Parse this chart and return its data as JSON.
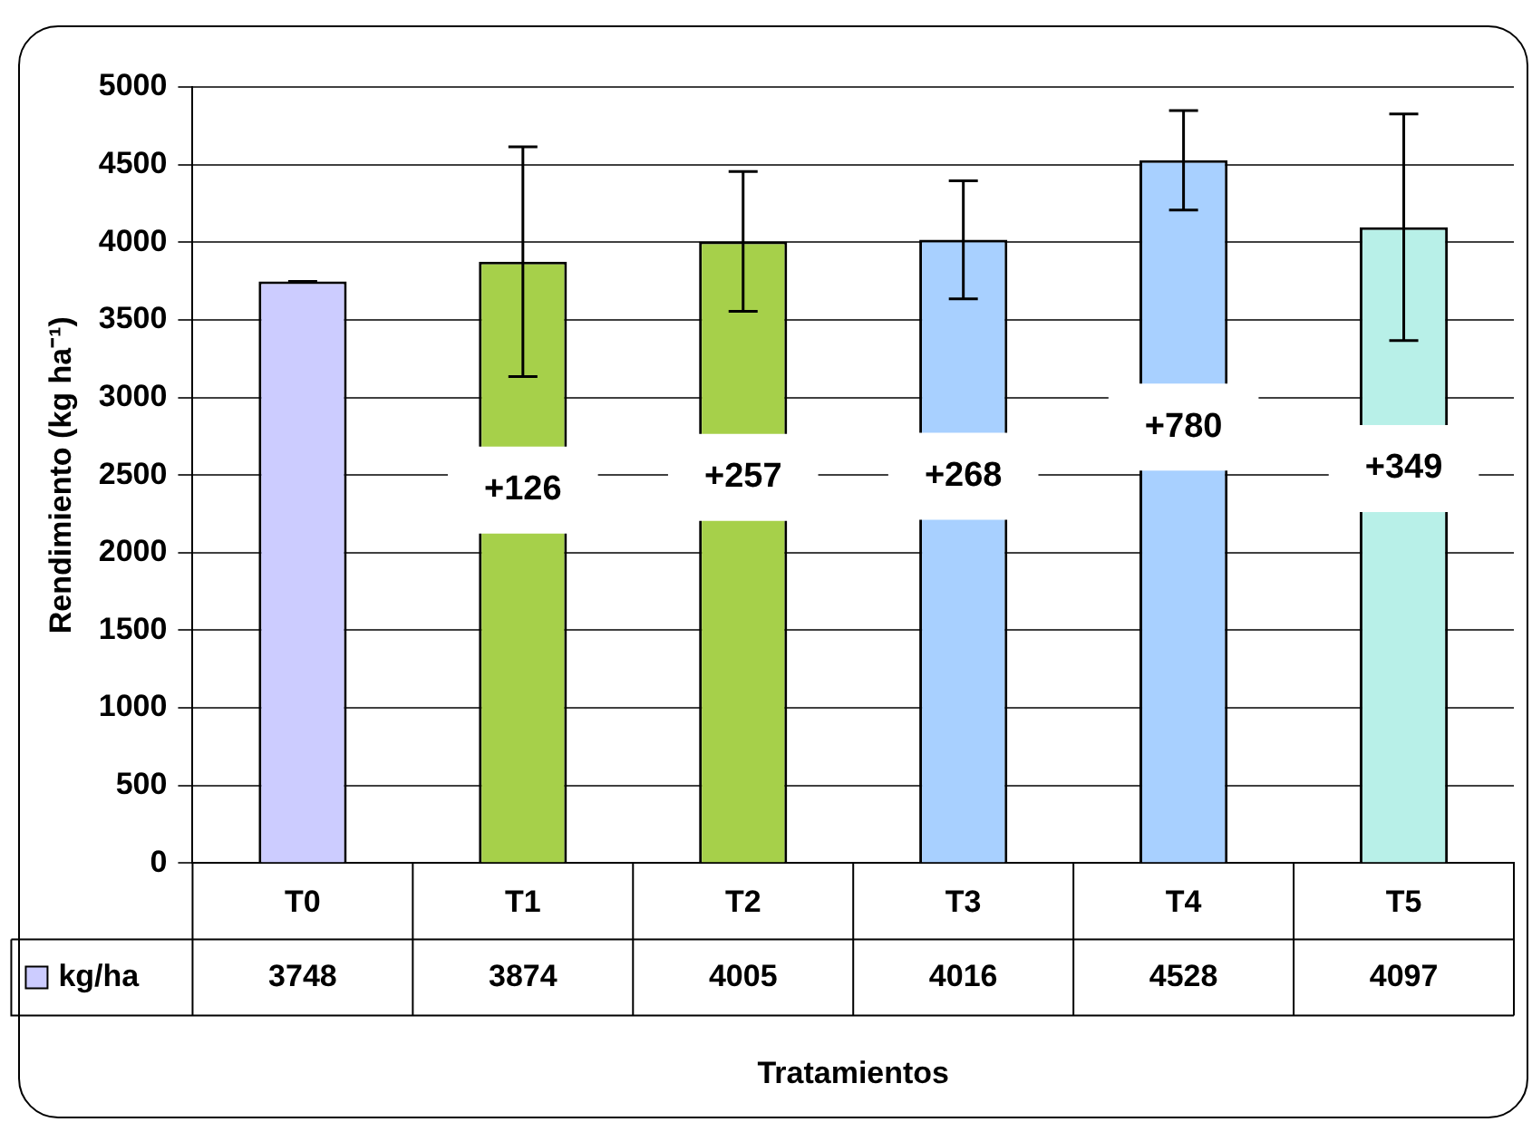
{
  "chart_data": {
    "type": "bar",
    "xlabel": "Tratamientos",
    "ylabel": "Rendimiento (kg ha⁻¹)",
    "categories": [
      "T0",
      "T1",
      "T2",
      "T3",
      "T4",
      "T5"
    ],
    "series": [
      {
        "name": "kg/ha",
        "color": "#ccccff",
        "colors": [
          "#ccccff",
          "#a6d04a",
          "#a6d04a",
          "#a8d0ff",
          "#a8d0ff",
          "#b8f0e8"
        ],
        "values": [
          3748,
          3874,
          4005,
          4016,
          4528,
          4097
        ],
        "errors": [
          0,
          740,
          450,
          380,
          320,
          730
        ]
      }
    ],
    "ylim": [
      0,
      5000
    ],
    "yticks": [
      0,
      500,
      1000,
      1500,
      2000,
      2500,
      3000,
      3500,
      4000,
      4500,
      5000
    ],
    "grid": "y",
    "data_labels": true,
    "annotations": [
      "+126",
      "+257",
      "+268",
      "+780",
      "+349"
    ]
  }
}
